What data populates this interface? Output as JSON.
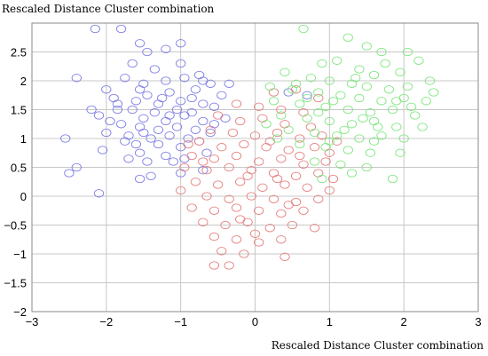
{
  "chart_data": {
    "type": "scatter",
    "title": "Rescaled Distance Cluster combination",
    "xlabel": "Rescaled Distance Cluster combination",
    "ylabel": "",
    "xlim": [
      -3,
      3
    ],
    "ylim": [
      -2,
      3
    ],
    "xticks": [
      -3,
      -2,
      -1,
      0,
      1,
      2,
      3
    ],
    "yticks": [
      -2,
      -1.5,
      -1,
      -0.5,
      0,
      0.5,
      1,
      1.5,
      2,
      2.5
    ],
    "grid": true,
    "legend": "none",
    "series": [
      {
        "color": "#7f7fe6",
        "points": [
          [
            -2.15,
            2.9
          ],
          [
            -1.8,
            2.9
          ],
          [
            -1.55,
            2.65
          ],
          [
            -1.45,
            2.5
          ],
          [
            -1.2,
            2.55
          ],
          [
            -1.0,
            2.65
          ],
          [
            -1.65,
            2.3
          ],
          [
            -1.35,
            2.2
          ],
          [
            -1.0,
            2.3
          ],
          [
            -0.75,
            2.1
          ],
          [
            -2.4,
            2.05
          ],
          [
            -1.75,
            2.05
          ],
          [
            -1.5,
            1.95
          ],
          [
            -1.2,
            2.0
          ],
          [
            -0.95,
            2.05
          ],
          [
            -0.7,
            2.0
          ],
          [
            -0.35,
            1.95
          ],
          [
            -2.0,
            1.85
          ],
          [
            -1.55,
            1.85
          ],
          [
            -1.45,
            1.75
          ],
          [
            -1.15,
            1.8
          ],
          [
            -0.8,
            1.85
          ],
          [
            -0.45,
            1.75
          ],
          [
            -1.9,
            1.7
          ],
          [
            -1.6,
            1.65
          ],
          [
            -1.3,
            1.6
          ],
          [
            -1.0,
            1.65
          ],
          [
            -0.7,
            1.6
          ],
          [
            -1.85,
            1.5
          ],
          [
            -1.65,
            1.5
          ],
          [
            -1.35,
            1.45
          ],
          [
            -1.05,
            1.5
          ],
          [
            -0.85,
            1.45
          ],
          [
            -0.55,
            1.55
          ],
          [
            -2.1,
            1.4
          ],
          [
            -1.5,
            1.35
          ],
          [
            -1.2,
            1.3
          ],
          [
            -0.95,
            1.4
          ],
          [
            -0.7,
            1.3
          ],
          [
            -0.4,
            1.35
          ],
          [
            -1.8,
            1.25
          ],
          [
            -1.55,
            1.2
          ],
          [
            -1.3,
            1.15
          ],
          [
            -1.05,
            1.2
          ],
          [
            -0.8,
            1.15
          ],
          [
            -0.55,
            1.25
          ],
          [
            -2.0,
            1.1
          ],
          [
            -1.7,
            1.05
          ],
          [
            -1.4,
            1.0
          ],
          [
            -1.15,
            1.05
          ],
          [
            -0.9,
            1.0
          ],
          [
            -0.6,
            1.1
          ],
          [
            -2.55,
            1.0
          ],
          [
            -1.6,
            0.9
          ],
          [
            -1.3,
            0.9
          ],
          [
            -1.0,
            0.85
          ],
          [
            -0.75,
            0.95
          ],
          [
            -2.05,
            0.8
          ],
          [
            -1.55,
            0.75
          ],
          [
            -1.2,
            0.7
          ],
          [
            -0.95,
            0.65
          ],
          [
            -0.65,
            0.75
          ],
          [
            -2.4,
            0.5
          ],
          [
            -1.7,
            0.65
          ],
          [
            -1.45,
            0.6
          ],
          [
            -1.1,
            0.6
          ],
          [
            -2.5,
            0.4
          ],
          [
            -1.4,
            0.35
          ],
          [
            -1.0,
            0.4
          ],
          [
            -0.7,
            0.45
          ],
          [
            -2.1,
            0.05
          ],
          [
            -1.55,
            0.3
          ],
          [
            0.7,
            1.75
          ],
          [
            0.45,
            1.8
          ],
          [
            -1.85,
            1.6
          ],
          [
            -0.6,
            1.95
          ],
          [
            -1.25,
            1.7
          ],
          [
            -1.5,
            1.1
          ],
          [
            -0.85,
            1.7
          ],
          [
            -1.15,
            1.4
          ],
          [
            -1.75,
            0.95
          ],
          [
            -2.2,
            1.5
          ],
          [
            -1.95,
            1.3
          ]
        ]
      },
      {
        "color": "#e68080",
        "points": [
          [
            0.25,
            1.8
          ],
          [
            0.55,
            1.85
          ],
          [
            0.85,
            1.7
          ],
          [
            -0.25,
            1.6
          ],
          [
            0.05,
            1.55
          ],
          [
            0.35,
            1.5
          ],
          [
            0.65,
            1.45
          ],
          [
            -0.5,
            1.4
          ],
          [
            -0.2,
            1.3
          ],
          [
            0.1,
            1.35
          ],
          [
            0.4,
            1.25
          ],
          [
            0.75,
            1.2
          ],
          [
            -0.6,
            1.15
          ],
          [
            -0.3,
            1.1
          ],
          [
            0.0,
            1.05
          ],
          [
            0.3,
            1.1
          ],
          [
            0.6,
            1.0
          ],
          [
            0.9,
            1.05
          ],
          [
            1.1,
            0.95
          ],
          [
            -0.75,
            0.95
          ],
          [
            -0.45,
            0.85
          ],
          [
            -0.15,
            0.9
          ],
          [
            0.15,
            0.85
          ],
          [
            0.45,
            0.8
          ],
          [
            0.8,
            0.85
          ],
          [
            1.0,
            0.75
          ],
          [
            -0.85,
            0.7
          ],
          [
            -0.55,
            0.65
          ],
          [
            -0.25,
            0.7
          ],
          [
            0.05,
            0.6
          ],
          [
            0.35,
            0.65
          ],
          [
            0.65,
            0.55
          ],
          [
            0.95,
            0.6
          ],
          [
            -0.95,
            0.5
          ],
          [
            -0.65,
            0.45
          ],
          [
            -0.35,
            0.5
          ],
          [
            -0.05,
            0.45
          ],
          [
            0.25,
            0.4
          ],
          [
            0.55,
            0.35
          ],
          [
            0.85,
            0.4
          ],
          [
            1.05,
            0.3
          ],
          [
            -0.8,
            0.25
          ],
          [
            -0.5,
            0.2
          ],
          [
            -0.2,
            0.25
          ],
          [
            0.1,
            0.15
          ],
          [
            0.4,
            0.2
          ],
          [
            0.7,
            0.15
          ],
          [
            1.0,
            0.1
          ],
          [
            -0.65,
            0.0
          ],
          [
            -0.35,
            -0.05
          ],
          [
            -0.05,
            0.0
          ],
          [
            0.25,
            -0.05
          ],
          [
            0.55,
            -0.1
          ],
          [
            0.85,
            -0.05
          ],
          [
            -0.85,
            -0.2
          ],
          [
            -0.55,
            -0.25
          ],
          [
            -0.25,
            -0.2
          ],
          [
            0.05,
            -0.25
          ],
          [
            0.35,
            -0.3
          ],
          [
            0.65,
            -0.25
          ],
          [
            -0.7,
            -0.45
          ],
          [
            -0.4,
            -0.5
          ],
          [
            -0.1,
            -0.45
          ],
          [
            0.2,
            -0.55
          ],
          [
            0.5,
            -0.5
          ],
          [
            0.8,
            -0.55
          ],
          [
            -0.55,
            -0.7
          ],
          [
            -0.25,
            -0.75
          ],
          [
            0.05,
            -0.8
          ],
          [
            0.35,
            -0.75
          ],
          [
            -0.45,
            -0.95
          ],
          [
            -0.15,
            -1.0
          ],
          [
            0.4,
            -1.05
          ],
          [
            -0.55,
            -1.2
          ],
          [
            -0.35,
            -1.2
          ],
          [
            -0.9,
            0.9
          ],
          [
            0.2,
            0.95
          ],
          [
            -0.1,
            0.35
          ],
          [
            0.45,
            -0.15
          ],
          [
            0.0,
            -0.65
          ],
          [
            -1.0,
            0.1
          ],
          [
            -0.2,
            -0.4
          ],
          [
            0.6,
            0.7
          ],
          [
            -0.7,
            0.6
          ],
          [
            0.3,
            0.3
          ]
        ]
      },
      {
        "color": "#80e680",
        "points": [
          [
            0.65,
            2.9
          ],
          [
            1.25,
            2.75
          ],
          [
            1.5,
            2.6
          ],
          [
            1.7,
            2.5
          ],
          [
            2.05,
            2.5
          ],
          [
            2.2,
            2.35
          ],
          [
            0.9,
            2.3
          ],
          [
            1.1,
            2.35
          ],
          [
            1.4,
            2.2
          ],
          [
            1.6,
            2.1
          ],
          [
            1.95,
            2.15
          ],
          [
            0.75,
            2.05
          ],
          [
            1.0,
            2.0
          ],
          [
            1.3,
            1.95
          ],
          [
            1.5,
            1.9
          ],
          [
            1.8,
            1.85
          ],
          [
            2.05,
            1.9
          ],
          [
            0.5,
            1.85
          ],
          [
            0.85,
            1.8
          ],
          [
            1.15,
            1.75
          ],
          [
            1.4,
            1.7
          ],
          [
            1.7,
            1.65
          ],
          [
            2.0,
            1.7
          ],
          [
            2.3,
            1.65
          ],
          [
            0.25,
            1.65
          ],
          [
            0.6,
            1.6
          ],
          [
            0.95,
            1.55
          ],
          [
            1.25,
            1.5
          ],
          [
            1.55,
            1.45
          ],
          [
            1.85,
            1.5
          ],
          [
            2.15,
            1.4
          ],
          [
            0.35,
            1.4
          ],
          [
            0.7,
            1.35
          ],
          [
            1.0,
            1.3
          ],
          [
            1.3,
            1.25
          ],
          [
            1.6,
            1.3
          ],
          [
            1.9,
            1.2
          ],
          [
            2.25,
            1.2
          ],
          [
            0.45,
            1.15
          ],
          [
            0.8,
            1.1
          ],
          [
            1.1,
            1.05
          ],
          [
            1.4,
            1.0
          ],
          [
            1.7,
            1.05
          ],
          [
            2.0,
            1.0
          ],
          [
            0.6,
            0.9
          ],
          [
            0.95,
            0.85
          ],
          [
            1.25,
            0.8
          ],
          [
            1.55,
            0.75
          ],
          [
            1.95,
            0.75
          ],
          [
            0.8,
            0.6
          ],
          [
            1.15,
            0.55
          ],
          [
            1.5,
            0.5
          ],
          [
            0.9,
            0.3
          ],
          [
            1.85,
            0.3
          ],
          [
            0.15,
            1.25
          ],
          [
            0.55,
            1.95
          ],
          [
            1.35,
            2.05
          ],
          [
            1.65,
            1.2
          ],
          [
            2.4,
            1.8
          ],
          [
            0.3,
            1.0
          ],
          [
            1.05,
            1.65
          ],
          [
            1.75,
            2.3
          ],
          [
            0.4,
            2.15
          ],
          [
            1.2,
            1.15
          ],
          [
            2.35,
            2.0
          ],
          [
            0.7,
            1.7
          ],
          [
            1.45,
            1.35
          ],
          [
            1.9,
            1.65
          ],
          [
            1.0,
            0.95
          ],
          [
            0.2,
            1.9
          ],
          [
            1.6,
            0.95
          ],
          [
            2.1,
            1.55
          ],
          [
            0.85,
            1.45
          ],
          [
            1.3,
            0.4
          ]
        ]
      }
    ]
  }
}
